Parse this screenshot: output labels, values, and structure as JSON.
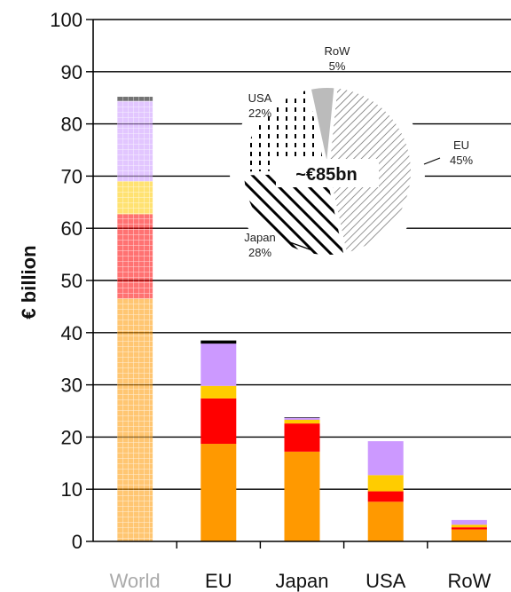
{
  "chart_data": [
    {
      "type": "bar",
      "stacked": true,
      "ylabel": "€ billion",
      "ylim": [
        0,
        100
      ],
      "yticks": [
        0,
        10,
        20,
        30,
        40,
        50,
        60,
        70,
        80,
        90,
        100
      ],
      "grid": true,
      "categories": [
        "World",
        "EU",
        "Japan",
        "USA",
        "RoW"
      ],
      "highlighted_category": "World",
      "segments": [
        {
          "color": "#ff9900",
          "values": [
            46.5,
            18.7,
            17.2,
            7.6,
            2.3
          ]
        },
        {
          "color": "#ff0000",
          "values": [
            16.2,
            8.7,
            5.4,
            2.0,
            0.4
          ]
        },
        {
          "color": "#ffcc00",
          "values": [
            6.3,
            2.4,
            0.7,
            3.1,
            0.5
          ]
        },
        {
          "color": "#cc99ff",
          "values": [
            15.4,
            8.1,
            0.4,
            6.5,
            0.9
          ]
        },
        {
          "color": "#000000",
          "values": [
            0.8,
            0.6,
            0.1,
            0.0,
            0.0
          ]
        }
      ]
    },
    {
      "type": "pie",
      "center_label": "~€85bn",
      "slices": [
        {
          "name": "EU",
          "label": "EU",
          "pct_label": "45%",
          "value": 45,
          "pattern": "diagonal-fine"
        },
        {
          "name": "Japan",
          "label": "Japan",
          "pct_label": "28%",
          "value": 28,
          "pattern": "diagonal-bold"
        },
        {
          "name": "USA",
          "label": "USA",
          "pct_label": "22%",
          "value": 22,
          "pattern": "dashed-vertical"
        },
        {
          "name": "RoW",
          "label": "RoW",
          "pct_label": "5%",
          "value": 5,
          "pattern": "solid-gray"
        }
      ]
    }
  ]
}
